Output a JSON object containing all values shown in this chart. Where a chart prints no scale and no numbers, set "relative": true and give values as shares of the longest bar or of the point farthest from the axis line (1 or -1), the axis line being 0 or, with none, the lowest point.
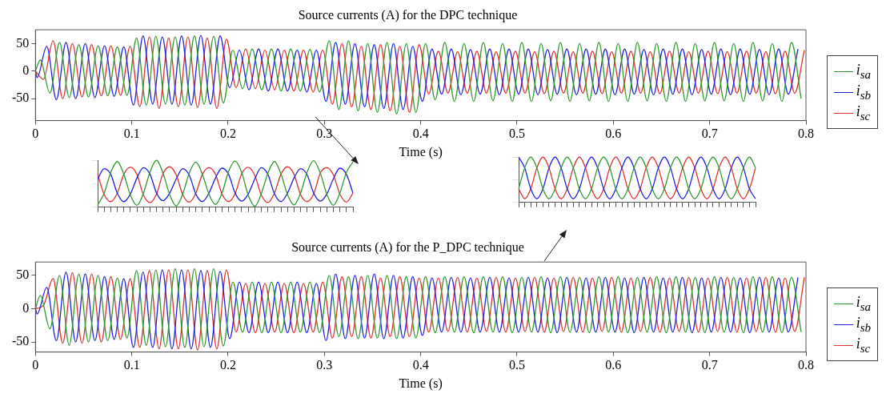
{
  "chart_data": [
    {
      "type": "line",
      "title": "Source currents (A) for the DPC technique",
      "xlabel": "Time (s)",
      "xlim": [
        0,
        0.8
      ],
      "xticks": [
        0,
        0.1,
        0.2,
        0.3,
        0.4,
        0.5,
        0.6,
        0.7,
        0.8
      ],
      "ylim": [
        -90,
        75
      ],
      "yticks": [
        -50,
        0,
        50
      ],
      "legend": "right",
      "series": [
        {
          "name": "i$_{sa}$",
          "color": "#2e9a2e",
          "x": [
            0,
            0.005,
            0.015,
            0.025,
            0.035,
            0.045,
            0.055,
            0.065,
            0.075,
            0.085,
            0.095,
            0.105,
            0.115,
            0.125,
            0.135,
            0.145,
            0.155,
            0.165,
            0.175,
            0.185,
            0.195,
            0.205,
            0.215,
            0.225,
            0.235,
            0.245,
            0.255,
            0.265,
            0.275,
            0.285,
            0.295,
            0.305,
            0.315,
            0.325,
            0.335,
            0.345,
            0.355,
            0.365,
            0.375,
            0.385,
            0.395,
            0.405,
            0.415,
            0.425,
            0.435,
            0.445,
            0.455,
            0.465,
            0.475,
            0.485,
            0.495,
            0.505,
            0.515,
            0.525,
            0.535,
            0.545,
            0.555,
            0.565,
            0.575,
            0.585,
            0.595,
            0.605,
            0.615,
            0.625,
            0.635,
            0.645,
            0.655,
            0.665,
            0.675,
            0.685,
            0.695,
            0.705,
            0.715,
            0.725,
            0.735,
            0.745,
            0.755,
            0.765,
            0.775,
            0.785,
            0.795
          ],
          "values": [
            0,
            20,
            -40,
            52,
            -48,
            48,
            -47,
            46,
            -45,
            44,
            -44,
            60,
            -62,
            63,
            -60,
            62,
            -62,
            64,
            -60,
            63,
            -58,
            38,
            -32,
            40,
            -34,
            40,
            -36,
            40,
            -36,
            39,
            -38,
            55,
            -70,
            55,
            -72,
            50,
            -75,
            52,
            -78,
            50,
            -75,
            50,
            -52,
            52,
            -55,
            50,
            -55,
            52,
            -54,
            50,
            -55,
            52,
            -55,
            50,
            -54,
            52,
            -55,
            50,
            -54,
            52,
            -55,
            50,
            -55,
            52,
            -54,
            50,
            -55,
            52,
            -55,
            50,
            -54,
            52,
            -54,
            50,
            -55,
            52,
            -54,
            50,
            -55,
            52,
            -50
          ]
        },
        {
          "name": "i$_{sb}$",
          "color": "#2020e0",
          "x": [
            0,
            0.0017,
            0.0117,
            0.0217,
            0.0317,
            0.0417,
            0.0517,
            0.0617,
            0.0717,
            0.0817,
            0.0917,
            0.1017,
            0.1117,
            0.1217,
            0.1317,
            0.1417,
            0.1517,
            0.1617,
            0.1717,
            0.1817,
            0.1917,
            0.2017,
            0.2117,
            0.2217,
            0.2317,
            0.2417,
            0.2517,
            0.2617,
            0.2717,
            0.2817,
            0.2917,
            0.3017,
            0.3117,
            0.3217,
            0.3317,
            0.3417,
            0.3517,
            0.3617,
            0.3717,
            0.3817,
            0.3917,
            0.4017,
            0.4117,
            0.4217,
            0.4317,
            0.4417,
            0.4517,
            0.4617,
            0.4717,
            0.4817,
            0.4917,
            0.5017,
            0.5117,
            0.5217,
            0.5317,
            0.5417,
            0.5517,
            0.5617,
            0.5717,
            0.5817,
            0.5917,
            0.6017,
            0.6117,
            0.6217,
            0.6317,
            0.6417,
            0.6517,
            0.6617,
            0.6717,
            0.6817,
            0.6917,
            0.7017,
            0.7117,
            0.7217,
            0.7317,
            0.7417,
            0.7517,
            0.7617,
            0.7717,
            0.7817,
            0.7917
          ],
          "values": [
            0,
            -12,
            45,
            -52,
            52,
            -50,
            50,
            -48,
            46,
            -46,
            44,
            -62,
            64,
            -60,
            62,
            -60,
            64,
            -62,
            65,
            -60,
            64,
            -30,
            38,
            -34,
            40,
            -36,
            40,
            -36,
            38,
            -38,
            38,
            -55,
            52,
            -60,
            50,
            -65,
            48,
            -68,
            50,
            -70,
            45,
            -55,
            40,
            -42,
            40,
            -43,
            39,
            -42,
            40,
            -43,
            40,
            -42,
            40,
            -43,
            39,
            -42,
            40,
            -43,
            40,
            -42,
            40,
            -43,
            40,
            -42,
            39,
            -43,
            40,
            -42,
            40,
            -43,
            39,
            -42,
            40,
            -43,
            40,
            -42,
            39,
            -43,
            40,
            -42,
            40
          ]
        },
        {
          "name": "i$_{sc}$",
          "color": "#e03030",
          "x": [
            0,
            0.0083,
            0.0183,
            0.0283,
            0.0383,
            0.0483,
            0.0583,
            0.0683,
            0.0783,
            0.0883,
            0.0983,
            0.1083,
            0.1183,
            0.1283,
            0.1383,
            0.1483,
            0.1583,
            0.1683,
            0.1783,
            0.1883,
            0.1983,
            0.2083,
            0.2183,
            0.2283,
            0.2383,
            0.2483,
            0.2583,
            0.2683,
            0.2783,
            0.2883,
            0.2983,
            0.3083,
            0.3183,
            0.3283,
            0.3383,
            0.3483,
            0.3583,
            0.3683,
            0.3783,
            0.3883,
            0.3983,
            0.4083,
            0.4183,
            0.4283,
            0.4383,
            0.4483,
            0.4583,
            0.4683,
            0.4783,
            0.4883,
            0.4983,
            0.5083,
            0.5183,
            0.5283,
            0.5383,
            0.5483,
            0.5583,
            0.5683,
            0.5783,
            0.5883,
            0.5983,
            0.6083,
            0.6183,
            0.6283,
            0.6383,
            0.6483,
            0.6583,
            0.6683,
            0.6783,
            0.6883,
            0.6983,
            0.7083,
            0.7183,
            0.7283,
            0.7383,
            0.7483,
            0.7583,
            0.7683,
            0.7783,
            0.7883,
            0.7983
          ],
          "values": [
            0,
            -15,
            55,
            -50,
            50,
            -47,
            48,
            -45,
            46,
            -44,
            45,
            -65,
            62,
            -68,
            60,
            -65,
            62,
            -66,
            60,
            -68,
            58,
            -30,
            40,
            -32,
            38,
            -34,
            38,
            -36,
            38,
            -38,
            38,
            -60,
            50,
            -65,
            45,
            -70,
            48,
            -72,
            45,
            -75,
            48,
            -42,
            36,
            -40,
            35,
            -40,
            36,
            -40,
            35,
            -40,
            36,
            -40,
            35,
            -41,
            36,
            -40,
            35,
            -40,
            36,
            -41,
            35,
            -40,
            36,
            -40,
            35,
            -41,
            36,
            -40,
            35,
            -40,
            36,
            -41,
            35,
            -40,
            36,
            -40,
            35,
            -41,
            36,
            -40,
            38
          ]
        }
      ]
    },
    {
      "type": "line",
      "relative": true,
      "categories": [
        null,
        null,
        null,
        null,
        null,
        null,
        null,
        null,
        null,
        null,
        null,
        null,
        null,
        null,
        null,
        null,
        null,
        null,
        null,
        null,
        null,
        null,
        null,
        null,
        null,
        null,
        null,
        null,
        null,
        null,
        null,
        null,
        null,
        null,
        null,
        null,
        null,
        null,
        null,
        null
      ],
      "series": [
        {
          "color": "#2e9a2e",
          "values": [
            0.05,
            0.3,
            0.74,
            0.97,
            0.7,
            0.26,
            0.04,
            0.3,
            0.75,
            1,
            0.72,
            0.27,
            0.03,
            0.28,
            0.73,
            0.96,
            0.7,
            0.28,
            0.06,
            0.3,
            0.76,
            0.98,
            0.74,
            0.26,
            0.02,
            0.29,
            0.72,
            0.97,
            0.71,
            0.27,
            0.05,
            0.3,
            0.75,
            0.99,
            0.73,
            0.28,
            0.04,
            0.3,
            0.74,
            0.96
          ]
        },
        {
          "color": "#2020e0",
          "values": [
            0.6,
            0.82,
            0.7,
            0.3,
            0.12,
            0.28,
            0.62,
            0.84,
            0.7,
            0.3,
            0.14,
            0.3,
            0.6,
            0.82,
            0.68,
            0.28,
            0.12,
            0.3,
            0.62,
            0.83,
            0.7,
            0.3,
            0.13,
            0.28,
            0.6,
            0.84,
            0.7,
            0.29,
            0.12,
            0.3,
            0.62,
            0.82,
            0.69,
            0.3,
            0.13,
            0.28,
            0.6,
            0.83,
            0.7,
            0.3
          ]
        },
        {
          "color": "#e03030",
          "values": [
            0.7,
            0.27,
            0.12,
            0.3,
            0.7,
            0.85,
            0.7,
            0.26,
            0.1,
            0.28,
            0.72,
            0.86,
            0.69,
            0.27,
            0.11,
            0.3,
            0.7,
            0.84,
            0.7,
            0.28,
            0.12,
            0.29,
            0.71,
            0.85,
            0.68,
            0.26,
            0.1,
            0.3,
            0.7,
            0.86,
            0.7,
            0.27,
            0.12,
            0.28,
            0.72,
            0.84,
            0.69,
            0.28,
            0.11,
            0.3
          ]
        }
      ]
    },
    {
      "type": "line",
      "relative": true,
      "categories": [
        null,
        null,
        null,
        null,
        null,
        null,
        null,
        null,
        null,
        null,
        null,
        null,
        null,
        null,
        null,
        null,
        null,
        null,
        null,
        null,
        null,
        null,
        null,
        null,
        null,
        null,
        null,
        null,
        null,
        null,
        null,
        null,
        null,
        null,
        null,
        null,
        null,
        null,
        null,
        null
      ],
      "series": [
        {
          "color": "#2e9a2e",
          "values": [
            0.3,
            0.76,
            1,
            0.76,
            0.3,
            0.08,
            0.3,
            0.76,
            1,
            0.76,
            0.3,
            0.08,
            0.3,
            0.76,
            1,
            0.76,
            0.3,
            0.08,
            0.3,
            0.76,
            1,
            0.76,
            0.3,
            0.08,
            0.3,
            0.76,
            1,
            0.76,
            0.3,
            0.08,
            0.3,
            0.76,
            1,
            0.76,
            0.3,
            0.08,
            0.3,
            0.76,
            1,
            0.76
          ]
        },
        {
          "color": "#2020e0",
          "values": [
            1,
            0.76,
            0.3,
            0.08,
            0.3,
            0.76,
            1,
            0.76,
            0.3,
            0.08,
            0.3,
            0.76,
            1,
            0.76,
            0.3,
            0.08,
            0.3,
            0.76,
            1,
            0.76,
            0.3,
            0.08,
            0.3,
            0.76,
            1,
            0.76,
            0.3,
            0.08,
            0.3,
            0.76,
            1,
            0.76,
            0.3,
            0.08,
            0.3,
            0.76,
            1,
            0.76,
            0.3,
            0.08
          ]
        },
        {
          "color": "#e03030",
          "values": [
            0.3,
            0.08,
            0.3,
            0.76,
            1,
            0.76,
            0.3,
            0.08,
            0.3,
            0.76,
            1,
            0.76,
            0.3,
            0.08,
            0.3,
            0.76,
            1,
            0.76,
            0.3,
            0.08,
            0.3,
            0.76,
            1,
            0.76,
            0.3,
            0.08,
            0.3,
            0.76,
            1,
            0.76,
            0.3,
            0.08,
            0.3,
            0.76,
            1,
            0.76,
            0.3,
            0.08,
            0.3,
            0.76
          ]
        }
      ]
    },
    {
      "type": "line",
      "title": "Source currents (A) for the P_DPC technique",
      "xlabel": "Time (s)",
      "xlim": [
        0,
        0.8
      ],
      "xticks": [
        0,
        0.1,
        0.2,
        0.3,
        0.4,
        0.5,
        0.6,
        0.7,
        0.8
      ],
      "ylim": [
        -65,
        70
      ],
      "yticks": [
        -50,
        0,
        50
      ],
      "legend": "right",
      "series": [
        {
          "name": "i$_{sa}$",
          "color": "#2e9a2e",
          "x": [
            0,
            0.005,
            0.015,
            0.025,
            0.035,
            0.045,
            0.055,
            0.065,
            0.075,
            0.085,
            0.095,
            0.105,
            0.115,
            0.125,
            0.135,
            0.145,
            0.155,
            0.165,
            0.175,
            0.185,
            0.195,
            0.205,
            0.215,
            0.225,
            0.235,
            0.245,
            0.255,
            0.265,
            0.275,
            0.285,
            0.295,
            0.305,
            0.315,
            0.325,
            0.335,
            0.345,
            0.355,
            0.365,
            0.375,
            0.385,
            0.395,
            0.405,
            0.415,
            0.425,
            0.435,
            0.445,
            0.455,
            0.465,
            0.475,
            0.485,
            0.495,
            0.505,
            0.515,
            0.525,
            0.535,
            0.545,
            0.555,
            0.565,
            0.575,
            0.585,
            0.595,
            0.605,
            0.615,
            0.625,
            0.635,
            0.645,
            0.655,
            0.665,
            0.675,
            0.685,
            0.695,
            0.705,
            0.715,
            0.725,
            0.735,
            0.745,
            0.755,
            0.765,
            0.775,
            0.785,
            0.795
          ],
          "values": [
            0,
            20,
            -30,
            50,
            -55,
            52,
            -50,
            50,
            -48,
            46,
            -44,
            57,
            -55,
            58,
            -57,
            60,
            -58,
            60,
            -57,
            60,
            -56,
            40,
            -35,
            40,
            -36,
            40,
            -36,
            40,
            -35,
            40,
            -36,
            50,
            -42,
            48,
            -45,
            50,
            -44,
            50,
            -45,
            48,
            -44,
            48,
            -36,
            48,
            -35,
            48,
            -36,
            48,
            -35,
            48,
            -36,
            47,
            -35,
            48,
            -36,
            48,
            -35,
            47,
            -36,
            48,
            -35,
            48,
            -36,
            47,
            -35,
            48,
            -36,
            48,
            -35,
            47,
            -36,
            48,
            -35,
            47,
            -36,
            48,
            -35,
            48,
            -36,
            47,
            -35
          ]
        },
        {
          "name": "i$_{sb}$",
          "color": "#2020e0",
          "x": [
            0,
            0.0017,
            0.0117,
            0.0217,
            0.0317,
            0.0417,
            0.0517,
            0.0617,
            0.0717,
            0.0817,
            0.0917,
            0.1017,
            0.1117,
            0.1217,
            0.1317,
            0.1417,
            0.1517,
            0.1617,
            0.1717,
            0.1817,
            0.1917,
            0.2017,
            0.2117,
            0.2217,
            0.2317,
            0.2417,
            0.2517,
            0.2617,
            0.2717,
            0.2817,
            0.2917,
            0.3017,
            0.3117,
            0.3217,
            0.3317,
            0.3417,
            0.3517,
            0.3617,
            0.3717,
            0.3817,
            0.3917,
            0.4017,
            0.4117,
            0.4217,
            0.4317,
            0.4417,
            0.4517,
            0.4617,
            0.4717,
            0.4817,
            0.4917,
            0.5017,
            0.5117,
            0.5217,
            0.5317,
            0.5417,
            0.5517,
            0.5617,
            0.5717,
            0.5817,
            0.5917,
            0.6017,
            0.6117,
            0.6217,
            0.6317,
            0.6417,
            0.6517,
            0.6617,
            0.6717,
            0.6817,
            0.6917,
            0.7017,
            0.7117,
            0.7217,
            0.7317,
            0.7417,
            0.7517,
            0.7617,
            0.7717,
            0.7817,
            0.7917
          ],
          "values": [
            0,
            -8,
            32,
            -48,
            55,
            -50,
            52,
            -48,
            48,
            -46,
            45,
            -58,
            55,
            -58,
            58,
            -60,
            58,
            -60,
            57,
            -58,
            56,
            -45,
            40,
            -36,
            40,
            -36,
            40,
            -36,
            40,
            -36,
            38,
            -48,
            52,
            -45,
            50,
            -44,
            52,
            -45,
            50,
            -44,
            48,
            -40,
            46,
            -35,
            47,
            -35,
            46,
            -35,
            47,
            -35,
            46,
            -35,
            47,
            -35,
            46,
            -36,
            47,
            -35,
            46,
            -35,
            47,
            -35,
            46,
            -36,
            47,
            -35,
            46,
            -35,
            47,
            -36,
            46,
            -35,
            47,
            -35,
            46,
            -36,
            47,
            -35,
            46,
            -35,
            47
          ]
        },
        {
          "name": "i$_{sc}$",
          "color": "#e03030",
          "x": [
            0,
            0.0083,
            0.0183,
            0.0283,
            0.0383,
            0.0483,
            0.0583,
            0.0683,
            0.0783,
            0.0883,
            0.0983,
            0.1083,
            0.1183,
            0.1283,
            0.1383,
            0.1483,
            0.1583,
            0.1683,
            0.1783,
            0.1883,
            0.1983,
            0.2083,
            0.2183,
            0.2283,
            0.2383,
            0.2483,
            0.2583,
            0.2683,
            0.2783,
            0.2883,
            0.2983,
            0.3083,
            0.3183,
            0.3283,
            0.3383,
            0.3483,
            0.3583,
            0.3683,
            0.3783,
            0.3883,
            0.3983,
            0.4083,
            0.4183,
            0.4283,
            0.4383,
            0.4483,
            0.4583,
            0.4683,
            0.4783,
            0.4883,
            0.4983,
            0.5083,
            0.5183,
            0.5283,
            0.5383,
            0.5483,
            0.5583,
            0.5683,
            0.5783,
            0.5883,
            0.5983,
            0.6083,
            0.6183,
            0.6283,
            0.6383,
            0.6483,
            0.6583,
            0.6683,
            0.6783,
            0.6883,
            0.6983,
            0.7083,
            0.7183,
            0.7283,
            0.7383,
            0.7483,
            0.7583,
            0.7683,
            0.7783,
            0.7883,
            0.7983
          ],
          "values": [
            0,
            5,
            45,
            -52,
            54,
            -52,
            52,
            -50,
            48,
            -46,
            45,
            -58,
            57,
            -60,
            58,
            -60,
            58,
            -62,
            57,
            -60,
            58,
            -35,
            38,
            -36,
            38,
            -35,
            38,
            -36,
            38,
            -35,
            40,
            -44,
            48,
            -42,
            48,
            -44,
            46,
            -42,
            48,
            -42,
            46,
            -35,
            46,
            -34,
            47,
            -35,
            46,
            -34,
            47,
            -35,
            46,
            -34,
            47,
            -35,
            46,
            -34,
            47,
            -35,
            46,
            -34,
            47,
            -35,
            46,
            -34,
            47,
            -35,
            46,
            -34,
            47,
            -35,
            46,
            -34,
            47,
            -35,
            46,
            -34,
            47,
            -35,
            46,
            -34,
            47
          ]
        }
      ]
    }
  ]
}
